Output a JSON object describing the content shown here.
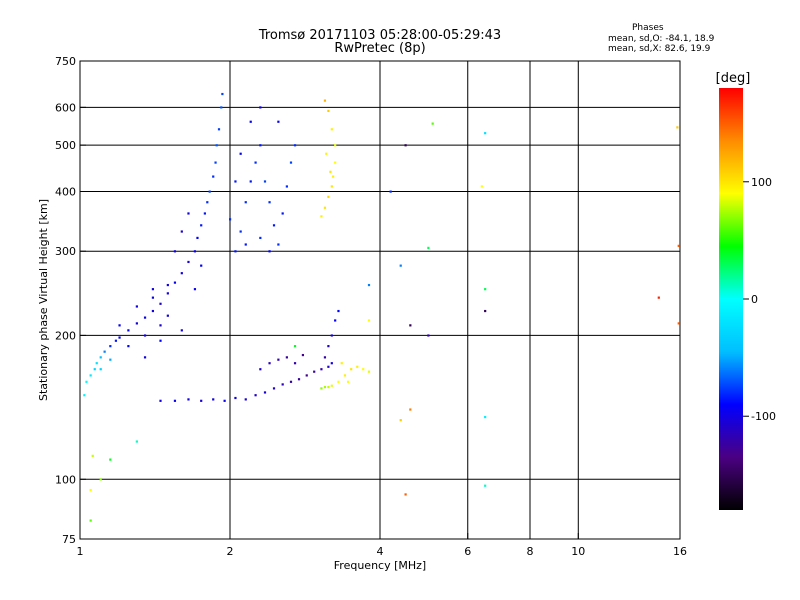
{
  "title_line1": "Tromsø 20171103 05:28:00-05:29:43",
  "title_line2": "RwPretec (8p)",
  "stats": {
    "heading": "Phases",
    "line_o": "mean, sd,O:  -84.1,  18.9",
    "line_x": "mean, sd,X:   82.6,  19.9"
  },
  "colorbar": {
    "unit_label": "[deg]",
    "ticks": [
      {
        "value": 100,
        "label": "100"
      },
      {
        "value": 0,
        "label": "0"
      },
      {
        "value": -100,
        "label": "-100"
      }
    ],
    "range": [
      -180,
      180
    ],
    "colors": [
      "#000000",
      "#4b0082",
      "#0000ff",
      "#00bfff",
      "#00ffff",
      "#00ff00",
      "#ffff00",
      "#ff8c00",
      "#ff0000"
    ]
  },
  "chart_data": {
    "type": "scatter",
    "xlabel": "Frequency [MHz]",
    "ylabel": "Stationary phase Virtual Height [km]",
    "xscale": "log",
    "yscale": "log",
    "xlim": [
      1,
      16
    ],
    "ylim": [
      75,
      750
    ],
    "grid": true,
    "x_ticks": [
      {
        "value": 1,
        "label": "1"
      },
      {
        "value": 2,
        "label": "2"
      },
      {
        "value": 4,
        "label": "4"
      },
      {
        "value": 6,
        "label": "6"
      },
      {
        "value": 8,
        "label": "8"
      },
      {
        "value": 10,
        "label": "10"
      },
      {
        "value": 16,
        "label": "16"
      }
    ],
    "y_ticks": [
      {
        "value": 75,
        "label": "75"
      },
      {
        "value": 100,
        "label": "100"
      },
      {
        "value": 200,
        "label": "200"
      },
      {
        "value": 300,
        "label": "300"
      },
      {
        "value": 400,
        "label": "400"
      },
      {
        "value": 500,
        "label": "500"
      },
      {
        "value": 600,
        "label": "600"
      },
      {
        "value": 750,
        "label": "750"
      }
    ],
    "x_grid": [
      2,
      4,
      6,
      8,
      10
    ],
    "y_grid": [
      100,
      200,
      300,
      400,
      500,
      600
    ],
    "series": [
      {
        "points": [
          [
            1.02,
            150,
            -10
          ],
          [
            1.03,
            160,
            -5
          ],
          [
            1.05,
            165,
            -15
          ],
          [
            1.07,
            170,
            -30
          ],
          [
            1.08,
            175,
            -20
          ],
          [
            1.1,
            180,
            -40
          ],
          [
            1.12,
            185,
            -60
          ],
          [
            1.15,
            190,
            -80
          ],
          [
            1.18,
            195,
            -85
          ],
          [
            1.2,
            198,
            -90
          ],
          [
            1.25,
            205,
            -95
          ],
          [
            1.3,
            212,
            -100
          ],
          [
            1.35,
            218,
            -95
          ],
          [
            1.4,
            225,
            -100
          ],
          [
            1.45,
            233,
            -105
          ],
          [
            1.5,
            245,
            -100
          ],
          [
            1.55,
            258,
            -95
          ],
          [
            1.6,
            270,
            -100
          ],
          [
            1.65,
            285,
            -105
          ],
          [
            1.7,
            300,
            -95
          ],
          [
            1.72,
            320,
            -90
          ],
          [
            1.75,
            340,
            -85
          ],
          [
            1.78,
            360,
            -85
          ],
          [
            1.8,
            380,
            -80
          ],
          [
            1.82,
            400,
            -75
          ],
          [
            1.85,
            430,
            -80
          ],
          [
            1.87,
            460,
            -75
          ],
          [
            1.88,
            500,
            -70
          ],
          [
            1.9,
            540,
            -75
          ],
          [
            1.92,
            600,
            -70
          ],
          [
            1.93,
            640,
            -75
          ],
          [
            1.1,
            170,
            -30
          ],
          [
            1.15,
            178,
            -50
          ],
          [
            1.25,
            190,
            -90
          ],
          [
            1.35,
            200,
            -100
          ],
          [
            1.45,
            210,
            -105
          ],
          [
            1.5,
            220,
            -100
          ],
          [
            1.3,
            230,
            -100
          ],
          [
            1.4,
            240,
            -95
          ],
          [
            1.55,
            300,
            -100
          ],
          [
            1.6,
            330,
            -105
          ],
          [
            1.65,
            360,
            -100
          ],
          [
            1.2,
            210,
            -95
          ],
          [
            1.35,
            180,
            -100
          ],
          [
            1.45,
            195,
            -90
          ],
          [
            1.6,
            205,
            -100
          ],
          [
            1.7,
            250,
            -95
          ],
          [
            1.75,
            280,
            -90
          ],
          [
            2.05,
            300,
            -85
          ],
          [
            2.1,
            330,
            -80
          ],
          [
            2.15,
            380,
            -80
          ],
          [
            2.2,
            420,
            -85
          ],
          [
            2.25,
            460,
            -80
          ],
          [
            2.3,
            500,
            -85
          ],
          [
            2.35,
            420,
            -75
          ],
          [
            2.4,
            380,
            -80
          ],
          [
            2.45,
            340,
            -85
          ],
          [
            2.5,
            310,
            -80
          ],
          [
            2.55,
            360,
            -85
          ],
          [
            2.6,
            410,
            -80
          ],
          [
            2.65,
            460,
            -75
          ],
          [
            2.7,
            500,
            -80
          ],
          [
            2.5,
            560,
            -95
          ],
          [
            2.3,
            600,
            -100
          ],
          [
            2.2,
            560,
            -90
          ],
          [
            2.1,
            480,
            -90
          ],
          [
            2.05,
            420,
            -85
          ],
          [
            2.15,
            310,
            -85
          ],
          [
            2.4,
            300,
            -90
          ],
          [
            2.3,
            320,
            -80
          ],
          [
            2.0,
            350,
            -80
          ],
          [
            1.45,
            146,
            -100
          ],
          [
            1.55,
            146,
            -95
          ],
          [
            1.65,
            147,
            -100
          ],
          [
            1.75,
            146,
            -105
          ],
          [
            1.85,
            147,
            -100
          ],
          [
            1.95,
            146,
            -95
          ],
          [
            2.05,
            148,
            -100
          ],
          [
            2.15,
            147,
            -105
          ],
          [
            2.25,
            150,
            -110
          ],
          [
            2.35,
            152,
            -105
          ],
          [
            2.45,
            155,
            -110
          ],
          [
            2.55,
            158,
            -115
          ],
          [
            2.65,
            160,
            -120
          ],
          [
            2.75,
            162,
            -125
          ],
          [
            2.85,
            165,
            -130
          ],
          [
            2.95,
            168,
            -125
          ],
          [
            3.05,
            170,
            -120
          ],
          [
            3.15,
            172,
            -110
          ],
          [
            2.3,
            170,
            -110
          ],
          [
            2.4,
            175,
            -115
          ],
          [
            2.5,
            178,
            -120
          ],
          [
            2.6,
            180,
            -125
          ],
          [
            2.7,
            175,
            -120
          ],
          [
            2.8,
            182,
            -130
          ],
          [
            3.1,
            180,
            -120
          ],
          [
            3.15,
            190,
            -110
          ],
          [
            3.2,
            200,
            -100
          ],
          [
            3.25,
            215,
            -95
          ],
          [
            3.3,
            225,
            -90
          ],
          [
            3.2,
            175,
            -100
          ],
          [
            3.05,
            355,
            95
          ],
          [
            3.1,
            370,
            100
          ],
          [
            3.15,
            390,
            105
          ],
          [
            3.2,
            410,
            100
          ],
          [
            3.22,
            430,
            95
          ],
          [
            3.25,
            460,
            90
          ],
          [
            3.25,
            500,
            85
          ],
          [
            3.2,
            540,
            95
          ],
          [
            3.15,
            590,
            110
          ],
          [
            3.1,
            620,
            120
          ],
          [
            3.12,
            480,
            95
          ],
          [
            3.18,
            440,
            100
          ],
          [
            3.05,
            155,
            70
          ],
          [
            3.1,
            156,
            75
          ],
          [
            3.15,
            156,
            80
          ],
          [
            3.2,
            157,
            85
          ],
          [
            3.3,
            160,
            90
          ],
          [
            3.4,
            165,
            95
          ],
          [
            3.5,
            170,
            100
          ],
          [
            3.6,
            172,
            95
          ],
          [
            3.7,
            170,
            90
          ],
          [
            3.8,
            168,
            85
          ],
          [
            3.35,
            175,
            95
          ],
          [
            3.45,
            160,
            90
          ],
          [
            1.05,
            95,
            90
          ],
          [
            1.06,
            112,
            80
          ],
          [
            1.1,
            100,
            70
          ],
          [
            1.15,
            110,
            40
          ],
          [
            1.3,
            120,
            10
          ],
          [
            1.05,
            82,
            60
          ],
          [
            1.4,
            250,
            -100
          ],
          [
            1.5,
            255,
            -100
          ],
          [
            2.7,
            190,
            40
          ],
          [
            3.8,
            255,
            -60
          ],
          [
            3.8,
            215,
            90
          ],
          [
            4.2,
            400,
            -80
          ],
          [
            4.4,
            280,
            -60
          ],
          [
            4.5,
            500,
            -150
          ],
          [
            4.6,
            210,
            -150
          ],
          [
            5.0,
            305,
            30
          ],
          [
            5.0,
            200,
            -120
          ],
          [
            5.1,
            555,
            60
          ],
          [
            6.5,
            135,
            -10
          ],
          [
            6.5,
            250,
            30
          ],
          [
            6.5,
            225,
            -150
          ],
          [
            6.5,
            530,
            -20
          ],
          [
            6.4,
            410,
            90
          ],
          [
            6.5,
            97,
            10
          ],
          [
            4.5,
            93,
            150
          ],
          [
            4.6,
            140,
            140
          ],
          [
            4.4,
            133,
            110
          ],
          [
            14.5,
            240,
            170
          ],
          [
            15.9,
            308,
            150
          ],
          [
            15.8,
            545,
            110
          ],
          [
            15.9,
            212,
            150
          ]
        ]
      }
    ]
  }
}
